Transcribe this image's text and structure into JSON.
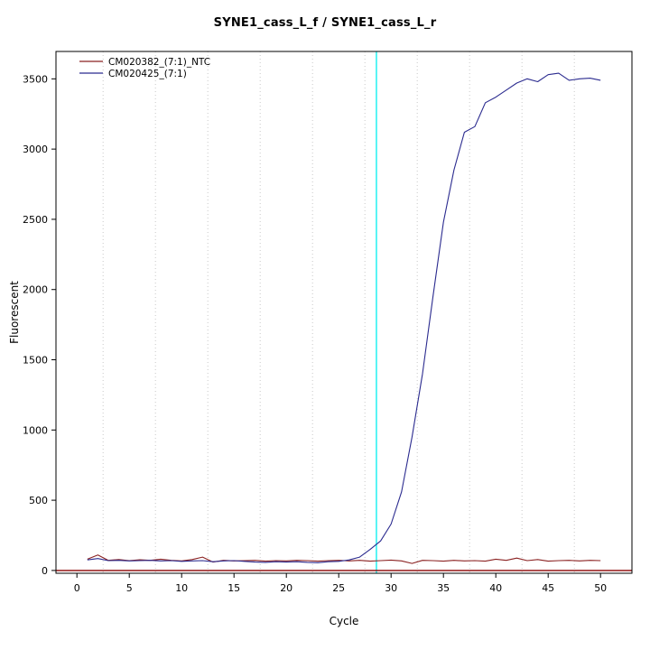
{
  "chart_data": {
    "type": "line",
    "title": "SYNE1_cass_L_f / SYNE1_cass_L_r",
    "xlabel": "Cycle",
    "ylabel": "Fluorescent",
    "xlim": [
      -2,
      53
    ],
    "ylim": [
      -20,
      3695
    ],
    "xticks": [
      0,
      5,
      10,
      15,
      20,
      25,
      30,
      35,
      40,
      45,
      50
    ],
    "yticks": [
      0,
      500,
      1000,
      1500,
      2000,
      2500,
      3000,
      3500
    ],
    "grid_x": [
      2.5,
      7.5,
      12.5,
      17.5,
      22.5,
      27.5,
      32.5,
      37.5,
      42.5,
      47.5
    ],
    "grid_on": true,
    "vline_x": 28.6,
    "vline_color": "#00eeee",
    "threshold_line_y": 0,
    "threshold_color": "#8b0000",
    "legend_position": "top-left",
    "legend": [
      {
        "label": "CM020382_(7:1)_NTC",
        "color": "#8b2222"
      },
      {
        "label": "CM020425_(7:1)",
        "color": "#2b2b8f"
      }
    ],
    "x": [
      1,
      2,
      3,
      4,
      5,
      6,
      7,
      8,
      9,
      10,
      11,
      12,
      13,
      14,
      15,
      16,
      17,
      18,
      19,
      20,
      21,
      22,
      23,
      24,
      25,
      26,
      27,
      28,
      29,
      30,
      31,
      32,
      33,
      34,
      35,
      36,
      37,
      38,
      39,
      40,
      41,
      42,
      43,
      44,
      45,
      46,
      47,
      48,
      49,
      50
    ],
    "series": [
      {
        "name": "CM020382_(7:1)_NTC",
        "color": "#8b2222",
        "values": [
          80,
          110,
          72,
          78,
          70,
          76,
          72,
          80,
          72,
          68,
          78,
          95,
          60,
          72,
          68,
          70,
          72,
          66,
          70,
          68,
          72,
          70,
          66,
          70,
          72,
          68,
          72,
          66,
          70,
          74,
          68,
          50,
          72,
          70,
          66,
          72,
          68,
          70,
          66,
          80,
          72,
          88,
          70,
          78,
          66,
          70,
          72,
          68,
          72,
          70
        ]
      },
      {
        "name": "CM020425_(7:1)",
        "color": "#2b2b8f",
        "values": [
          75,
          85,
          70,
          72,
          68,
          70,
          72,
          68,
          70,
          65,
          68,
          70,
          62,
          68,
          70,
          65,
          60,
          58,
          62,
          60,
          62,
          58,
          55,
          62,
          65,
          75,
          95,
          150,
          210,
          330,
          560,
          950,
          1400,
          1950,
          2480,
          2850,
          3120,
          3160,
          3330,
          3370,
          3420,
          3470,
          3500,
          3480,
          3530,
          3540,
          3490,
          3500,
          3505,
          3490
        ]
      }
    ]
  }
}
